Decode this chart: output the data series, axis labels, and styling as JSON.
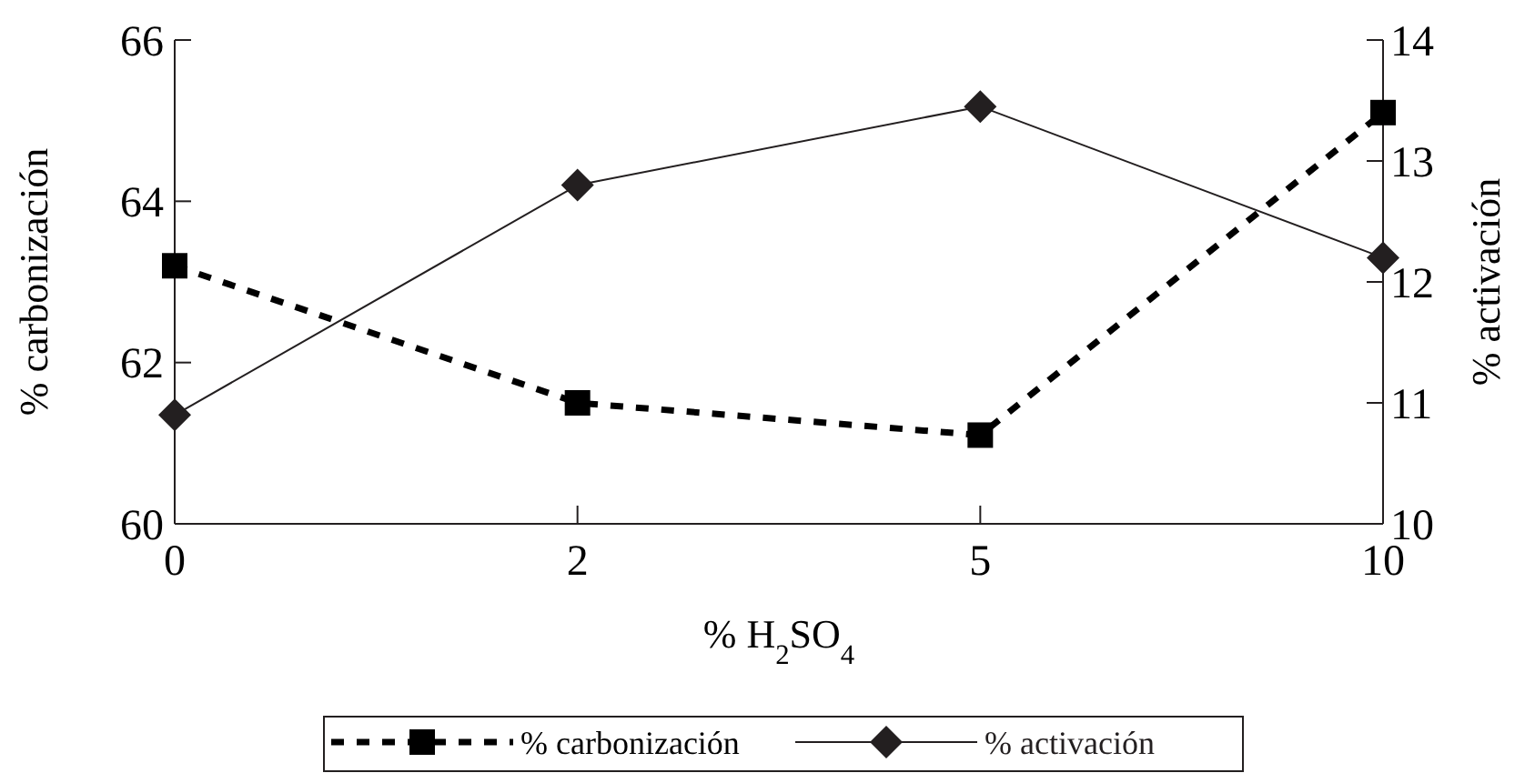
{
  "chart_data": {
    "type": "line",
    "xlabel": "% H$_{2}$SO$_{4}$",
    "ylabel": "% carbonización",
    "y2label": "% activación",
    "categories": [
      "0",
      "2",
      "5",
      "10"
    ],
    "ylim": [
      60,
      66
    ],
    "yticks": [
      60,
      62,
      64,
      66
    ],
    "y2lim": [
      10,
      14
    ],
    "y2ticks": [
      10,
      11,
      12,
      13,
      14
    ],
    "legend": "bottom",
    "grid": false,
    "series": [
      {
        "name": "% carbonización",
        "color": "#000000",
        "values": [
          63.2,
          61.5,
          61.1,
          65.1
        ],
        "marker": "square",
        "line_style": "dotted"
      },
      {
        "name": "% activación",
        "color": "#231f20",
        "values": [
          10.9,
          12.8,
          13.45,
          12.2
        ],
        "axis": "y2",
        "marker": "diamond",
        "line_style": "solid"
      }
    ]
  }
}
